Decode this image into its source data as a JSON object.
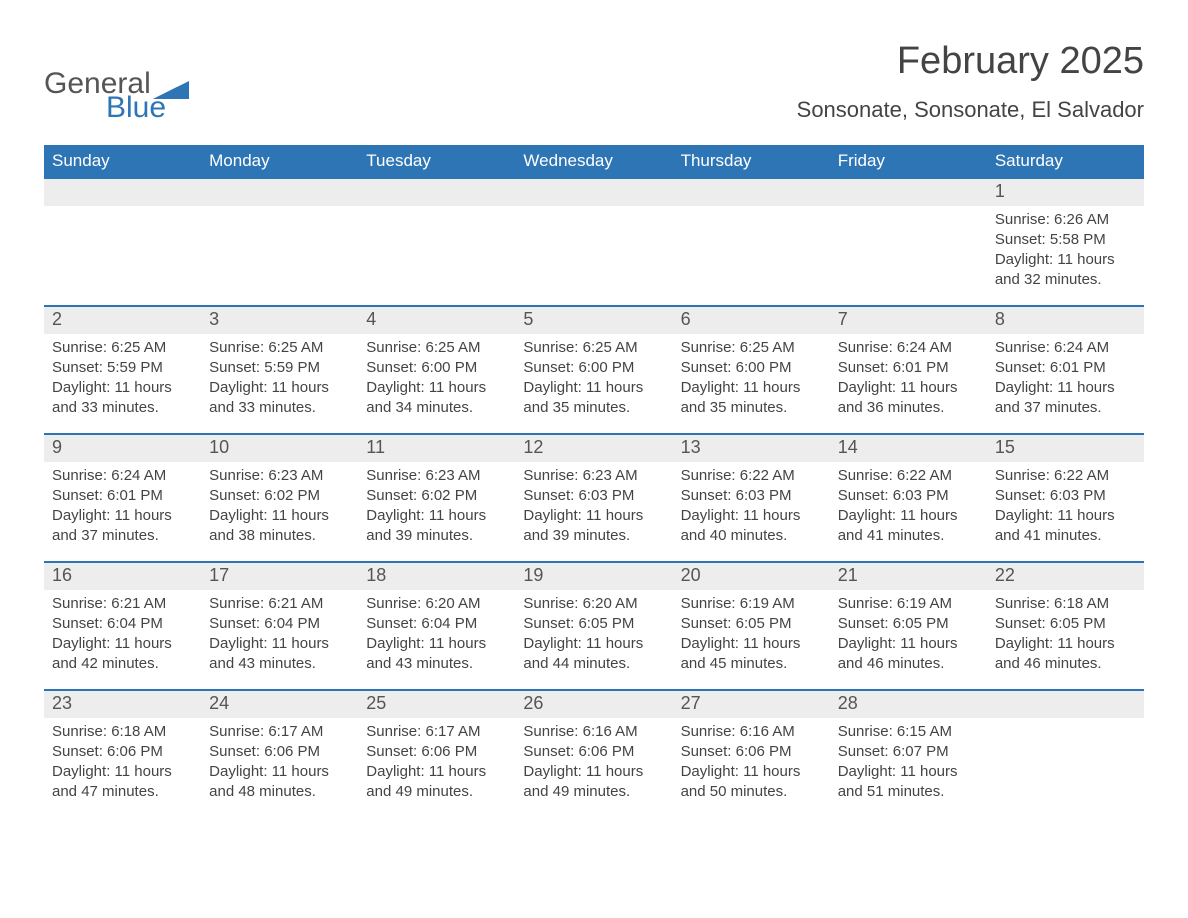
{
  "logo": {
    "text1": "General",
    "text2": "Blue",
    "flag_color": "#2e75b6"
  },
  "title": "February 2025",
  "location": "Sonsonate, Sonsonate, El Salvador",
  "colors": {
    "header_bg": "#2e75b6",
    "header_text": "#ffffff",
    "daynum_bg": "#ededed",
    "text": "#444444",
    "row_divider": "#2e75b6"
  },
  "typography": {
    "title_fontsize": 38,
    "location_fontsize": 22,
    "dayhead_fontsize": 17,
    "body_fontsize": 15
  },
  "day_headers": [
    "Sunday",
    "Monday",
    "Tuesday",
    "Wednesday",
    "Thursday",
    "Friday",
    "Saturday"
  ],
  "labels": {
    "sunrise": "Sunrise:",
    "sunset": "Sunset:",
    "daylight": "Daylight:"
  },
  "weeks": [
    [
      null,
      null,
      null,
      null,
      null,
      null,
      {
        "n": "1",
        "sunrise": "6:26 AM",
        "sunset": "5:58 PM",
        "daylight": "11 hours and 32 minutes."
      }
    ],
    [
      {
        "n": "2",
        "sunrise": "6:25 AM",
        "sunset": "5:59 PM",
        "daylight": "11 hours and 33 minutes."
      },
      {
        "n": "3",
        "sunrise": "6:25 AM",
        "sunset": "5:59 PM",
        "daylight": "11 hours and 33 minutes."
      },
      {
        "n": "4",
        "sunrise": "6:25 AM",
        "sunset": "6:00 PM",
        "daylight": "11 hours and 34 minutes."
      },
      {
        "n": "5",
        "sunrise": "6:25 AM",
        "sunset": "6:00 PM",
        "daylight": "11 hours and 35 minutes."
      },
      {
        "n": "6",
        "sunrise": "6:25 AM",
        "sunset": "6:00 PM",
        "daylight": "11 hours and 35 minutes."
      },
      {
        "n": "7",
        "sunrise": "6:24 AM",
        "sunset": "6:01 PM",
        "daylight": "11 hours and 36 minutes."
      },
      {
        "n": "8",
        "sunrise": "6:24 AM",
        "sunset": "6:01 PM",
        "daylight": "11 hours and 37 minutes."
      }
    ],
    [
      {
        "n": "9",
        "sunrise": "6:24 AM",
        "sunset": "6:01 PM",
        "daylight": "11 hours and 37 minutes."
      },
      {
        "n": "10",
        "sunrise": "6:23 AM",
        "sunset": "6:02 PM",
        "daylight": "11 hours and 38 minutes."
      },
      {
        "n": "11",
        "sunrise": "6:23 AM",
        "sunset": "6:02 PM",
        "daylight": "11 hours and 39 minutes."
      },
      {
        "n": "12",
        "sunrise": "6:23 AM",
        "sunset": "6:03 PM",
        "daylight": "11 hours and 39 minutes."
      },
      {
        "n": "13",
        "sunrise": "6:22 AM",
        "sunset": "6:03 PM",
        "daylight": "11 hours and 40 minutes."
      },
      {
        "n": "14",
        "sunrise": "6:22 AM",
        "sunset": "6:03 PM",
        "daylight": "11 hours and 41 minutes."
      },
      {
        "n": "15",
        "sunrise": "6:22 AM",
        "sunset": "6:03 PM",
        "daylight": "11 hours and 41 minutes."
      }
    ],
    [
      {
        "n": "16",
        "sunrise": "6:21 AM",
        "sunset": "6:04 PM",
        "daylight": "11 hours and 42 minutes."
      },
      {
        "n": "17",
        "sunrise": "6:21 AM",
        "sunset": "6:04 PM",
        "daylight": "11 hours and 43 minutes."
      },
      {
        "n": "18",
        "sunrise": "6:20 AM",
        "sunset": "6:04 PM",
        "daylight": "11 hours and 43 minutes."
      },
      {
        "n": "19",
        "sunrise": "6:20 AM",
        "sunset": "6:05 PM",
        "daylight": "11 hours and 44 minutes."
      },
      {
        "n": "20",
        "sunrise": "6:19 AM",
        "sunset": "6:05 PM",
        "daylight": "11 hours and 45 minutes."
      },
      {
        "n": "21",
        "sunrise": "6:19 AM",
        "sunset": "6:05 PM",
        "daylight": "11 hours and 46 minutes."
      },
      {
        "n": "22",
        "sunrise": "6:18 AM",
        "sunset": "6:05 PM",
        "daylight": "11 hours and 46 minutes."
      }
    ],
    [
      {
        "n": "23",
        "sunrise": "6:18 AM",
        "sunset": "6:06 PM",
        "daylight": "11 hours and 47 minutes."
      },
      {
        "n": "24",
        "sunrise": "6:17 AM",
        "sunset": "6:06 PM",
        "daylight": "11 hours and 48 minutes."
      },
      {
        "n": "25",
        "sunrise": "6:17 AM",
        "sunset": "6:06 PM",
        "daylight": "11 hours and 49 minutes."
      },
      {
        "n": "26",
        "sunrise": "6:16 AM",
        "sunset": "6:06 PM",
        "daylight": "11 hours and 49 minutes."
      },
      {
        "n": "27",
        "sunrise": "6:16 AM",
        "sunset": "6:06 PM",
        "daylight": "11 hours and 50 minutes."
      },
      {
        "n": "28",
        "sunrise": "6:15 AM",
        "sunset": "6:07 PM",
        "daylight": "11 hours and 51 minutes."
      },
      null
    ]
  ]
}
